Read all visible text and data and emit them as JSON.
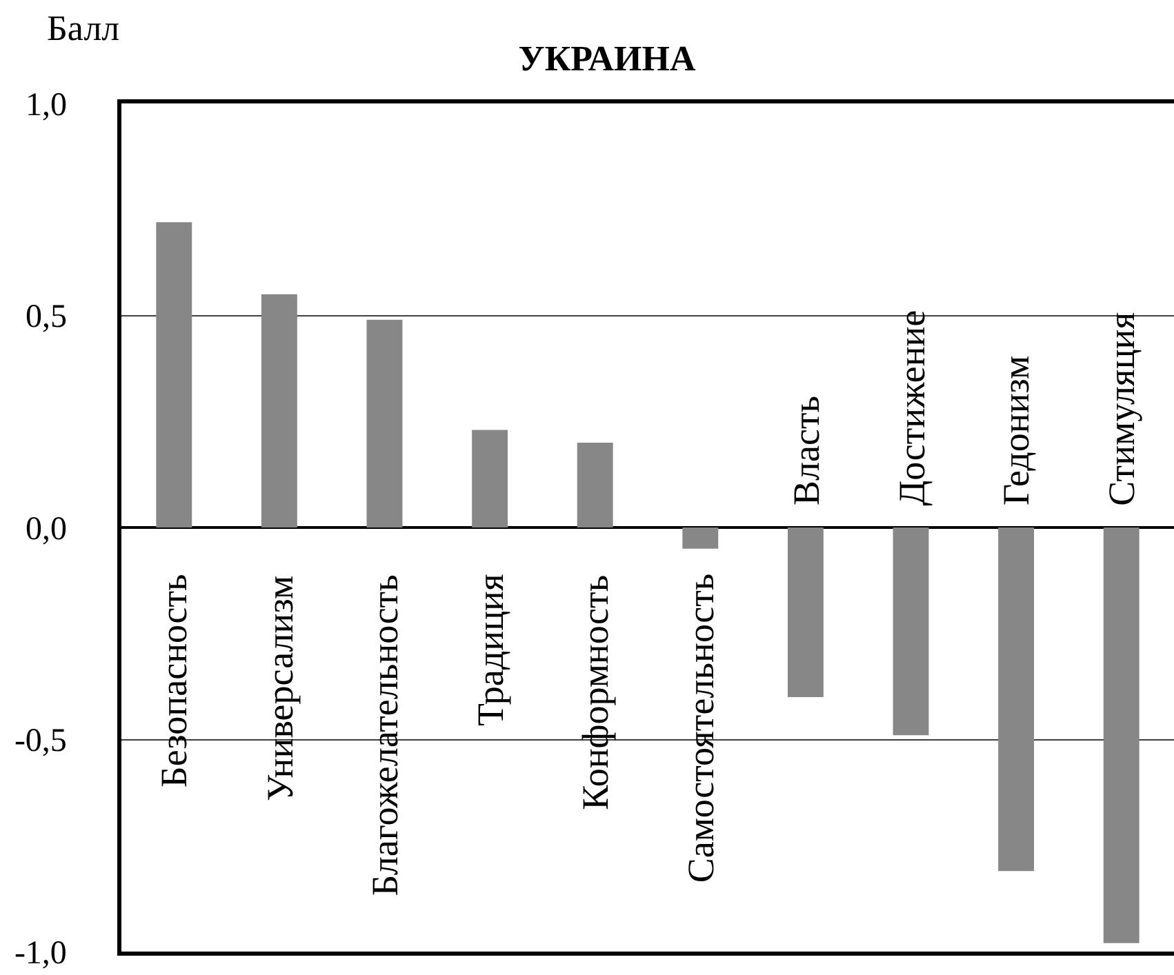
{
  "chart_data": {
    "type": "bar",
    "title": "УКРАИНА",
    "ylabel": "Балл",
    "categories": [
      "Безопасность",
      "Универсализм",
      "Благожелательность",
      "Традиция",
      "Конформность",
      "Самостоятельность",
      "Власть",
      "Достижение",
      "Гедонизм",
      "Стимуляция"
    ],
    "values": [
      0.72,
      0.55,
      0.49,
      0.23,
      0.2,
      -0.05,
      -0.4,
      -0.49,
      -0.81,
      -0.98
    ],
    "color": "#878787",
    "ylim": [
      -1.0,
      1.0
    ],
    "yticks": [
      {
        "value": -1.0,
        "label": "-1,0"
      },
      {
        "value": -0.5,
        "label": "-0,5"
      },
      {
        "value": 0.0,
        "label": "0,0"
      },
      {
        "value": 0.5,
        "label": "0,5"
      },
      {
        "value": 1.0,
        "label": "1,0"
      }
    ],
    "grid": "y"
  }
}
